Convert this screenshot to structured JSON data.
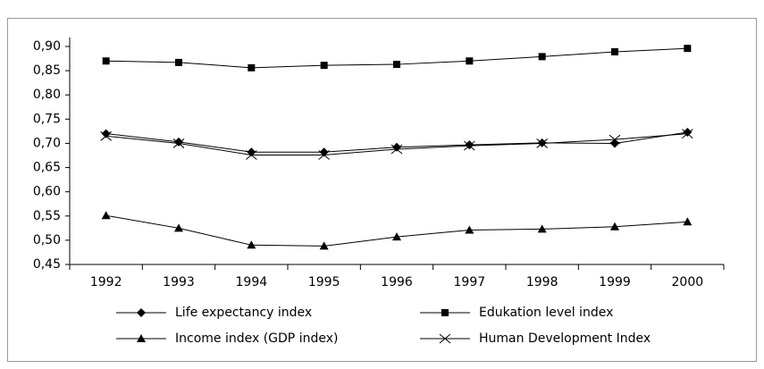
{
  "chart_data": {
    "type": "line",
    "categories": [
      "1992",
      "1993",
      "1994",
      "1995",
      "1996",
      "1997",
      "1998",
      "1999",
      "2000"
    ],
    "series": [
      {
        "name": "Life expectancy index",
        "color": "#000000",
        "marker": "diamond",
        "values": [
          0.72,
          0.703,
          0.682,
          0.682,
          0.692,
          0.697,
          0.701,
          0.7,
          0.723
        ]
      },
      {
        "name": "Edukation level index",
        "color": "#000000",
        "marker": "square",
        "values": [
          0.87,
          0.867,
          0.856,
          0.861,
          0.863,
          0.87,
          0.879,
          0.889,
          0.896
        ]
      },
      {
        "name": "Income index (GDP index)",
        "color": "#000000",
        "marker": "triangle",
        "values": [
          0.551,
          0.525,
          0.49,
          0.488,
          0.507,
          0.521,
          0.523,
          0.528,
          0.538
        ]
      },
      {
        "name": "Human Development Index",
        "color": "#000000",
        "marker": "x",
        "values": [
          0.715,
          0.7,
          0.676,
          0.676,
          0.688,
          0.695,
          0.7,
          0.708,
          0.72
        ]
      }
    ],
    "ylim": [
      0.45,
      0.9
    ],
    "yticks": [
      {
        "value": 0.45,
        "label": "0,45"
      },
      {
        "value": 0.5,
        "label": "0,50"
      },
      {
        "value": 0.55,
        "label": "0,55"
      },
      {
        "value": 0.6,
        "label": "0,60"
      },
      {
        "value": 0.65,
        "label": "0,65"
      },
      {
        "value": 0.7,
        "label": "0,70"
      },
      {
        "value": 0.75,
        "label": "0,75"
      },
      {
        "value": 0.8,
        "label": "0,80"
      },
      {
        "value": 0.85,
        "label": "0,85"
      },
      {
        "value": 0.9,
        "label": "0,90"
      }
    ],
    "grid": false,
    "legend": "bottom"
  }
}
